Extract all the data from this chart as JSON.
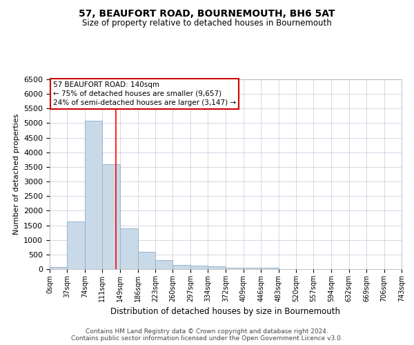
{
  "title": "57, BEAUFORT ROAD, BOURNEMOUTH, BH6 5AT",
  "subtitle": "Size of property relative to detached houses in Bournemouth",
  "xlabel": "Distribution of detached houses by size in Bournemouth",
  "ylabel": "Number of detached properties",
  "bar_values": [
    75,
    1625,
    5075,
    3600,
    1400,
    600,
    300,
    150,
    125,
    100,
    50,
    50,
    50,
    0,
    0,
    0,
    0,
    0,
    0,
    0
  ],
  "bin_edges": [
    0,
    37,
    74,
    111,
    149,
    186,
    223,
    260,
    297,
    334,
    372,
    409,
    446,
    483,
    520,
    557,
    594,
    632,
    669,
    706,
    743
  ],
  "x_tick_labels": [
    "0sqm",
    "37sqm",
    "74sqm",
    "111sqm",
    "149sqm",
    "186sqm",
    "223sqm",
    "260sqm",
    "297sqm",
    "334sqm",
    "372sqm",
    "409sqm",
    "446sqm",
    "483sqm",
    "520sqm",
    "557sqm",
    "594sqm",
    "632sqm",
    "669sqm",
    "706sqm",
    "743sqm"
  ],
  "bar_color": "#c8d9e8",
  "bar_edge_color": "#9ab4cc",
  "red_line_x": 140,
  "ylim": [
    0,
    6500
  ],
  "yticks": [
    0,
    500,
    1000,
    1500,
    2000,
    2500,
    3000,
    3500,
    4000,
    4500,
    5000,
    5500,
    6000,
    6500
  ],
  "annotation_text": "57 BEAUFORT ROAD: 140sqm\n← 75% of detached houses are smaller (9,657)\n24% of semi-detached houses are larger (3,147) →",
  "annotation_box_edge": "#cc0000",
  "footer_line1": "Contains HM Land Registry data © Crown copyright and database right 2024.",
  "footer_line2": "Contains public sector information licensed under the Open Government Licence v3.0.",
  "background_color": "#ffffff",
  "grid_color": "#c0c8d8"
}
